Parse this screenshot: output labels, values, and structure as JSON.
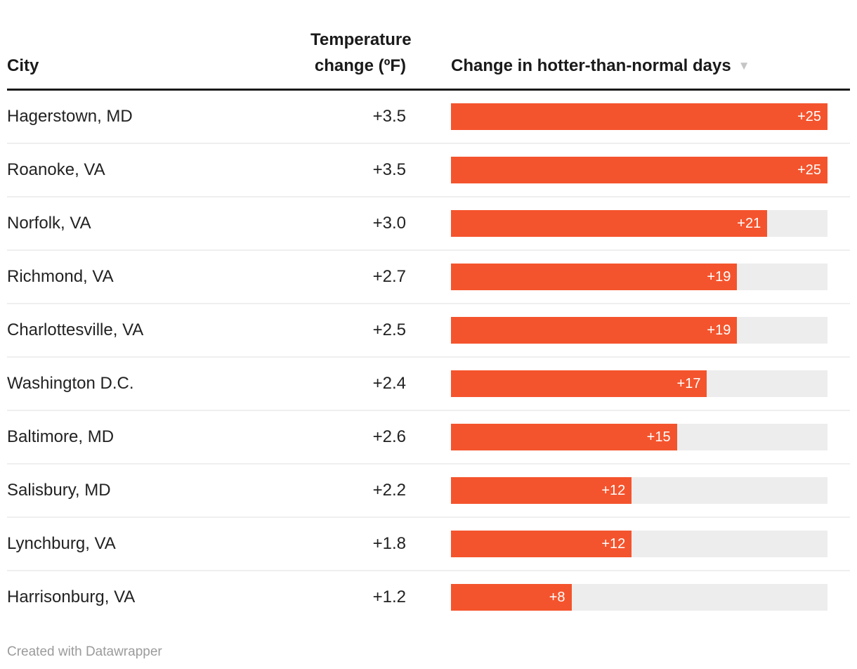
{
  "header": {
    "city_label": "City",
    "temp_label": "Temperature\nchange (ºF)",
    "bars_label": "Change in hotter-than-normal days",
    "sort_icon": "▼"
  },
  "footer": {
    "credit": "Created with Datawrapper"
  },
  "colors": {
    "bar": "#f4542d",
    "bar_track": "#ededed",
    "bar_label": "#ffffff",
    "header_rule": "#1a1a1a",
    "row_divider": "#efefef",
    "text": "#222222",
    "sort_icon": "#c5c5c5",
    "footer_text": "#9b9b9b"
  },
  "rows": [
    {
      "city": "Hagerstown, MD",
      "temp": "+3.5",
      "days": 25,
      "days_label": "+25"
    },
    {
      "city": "Roanoke, VA",
      "temp": "+3.5",
      "days": 25,
      "days_label": "+25"
    },
    {
      "city": "Norfolk, VA",
      "temp": "+3.0",
      "days": 21,
      "days_label": "+21"
    },
    {
      "city": "Richmond, VA",
      "temp": "+2.7",
      "days": 19,
      "days_label": "+19"
    },
    {
      "city": "Charlottesville, VA",
      "temp": "+2.5",
      "days": 19,
      "days_label": "+19"
    },
    {
      "city": "Washington D.C.",
      "temp": "+2.4",
      "days": 17,
      "days_label": "+17"
    },
    {
      "city": "Baltimore, MD",
      "temp": "+2.6",
      "days": 15,
      "days_label": "+15"
    },
    {
      "city": "Salisbury, MD",
      "temp": "+2.2",
      "days": 12,
      "days_label": "+12"
    },
    {
      "city": "Lynchburg, VA",
      "temp": "+1.8",
      "days": 12,
      "days_label": "+12"
    },
    {
      "city": "Harrisonburg, VA",
      "temp": "+1.2",
      "days": 8,
      "days_label": "+8"
    }
  ],
  "chart_data": {
    "type": "bar",
    "orientation": "horizontal",
    "categories": [
      "Hagerstown, MD",
      "Roanoke, VA",
      "Norfolk, VA",
      "Richmond, VA",
      "Charlottesville, VA",
      "Washington D.C.",
      "Baltimore, MD",
      "Salisbury, MD",
      "Lynchburg, VA",
      "Harrisonburg, VA"
    ],
    "series": [
      {
        "name": "Temperature change (ºF)",
        "values": [
          3.5,
          3.5,
          3.0,
          2.7,
          2.5,
          2.4,
          2.6,
          2.2,
          1.8,
          1.2
        ]
      },
      {
        "name": "Change in hotter-than-normal days",
        "values": [
          25,
          25,
          21,
          19,
          19,
          17,
          15,
          12,
          12,
          8
        ]
      }
    ],
    "bar_series_shown_as_bars": "Change in hotter-than-normal days",
    "sort": "descending by hotter-than-normal days",
    "xlim": [
      0,
      25
    ],
    "bar_max": 25,
    "grid": false,
    "legend": false
  }
}
